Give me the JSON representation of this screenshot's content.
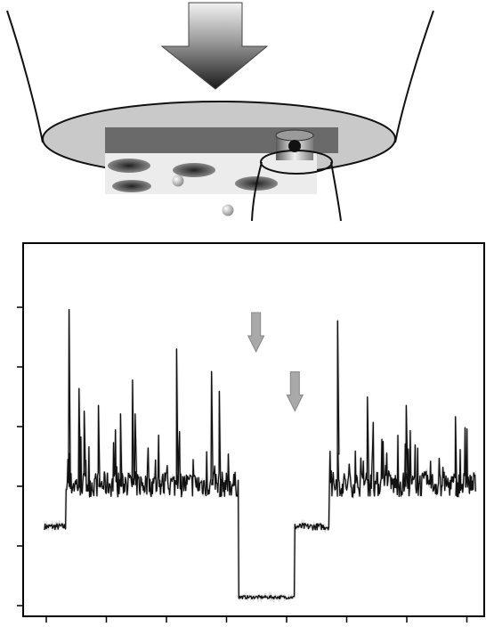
{
  "chart_data": {
    "type": "line",
    "title": "",
    "xlabel": "",
    "ylabel": "",
    "x_ticks": 8,
    "y_ticks": 6,
    "grid": false,
    "legend": "none",
    "trace_color": "#111111",
    "segments": [
      {
        "x0": 0.0,
        "x1": 0.05,
        "level": 0.08,
        "noise": 0.012
      },
      {
        "x0": 0.05,
        "x1": 0.45,
        "level": 0.23,
        "noise": 0.045
      },
      {
        "x0": 0.45,
        "x1": 0.58,
        "level": -0.17,
        "noise": 0.006
      },
      {
        "x0": 0.58,
        "x1": 0.66,
        "level": 0.08,
        "noise": 0.012
      },
      {
        "x0": 0.66,
        "x1": 1.0,
        "level": 0.23,
        "noise": 0.045
      }
    ],
    "spikes": [
      {
        "x": 0.057,
        "y": 0.85
      },
      {
        "x": 0.08,
        "y": 0.57
      },
      {
        "x": 0.092,
        "y": 0.49
      },
      {
        "x": 0.125,
        "y": 0.51
      },
      {
        "x": 0.176,
        "y": 0.48
      },
      {
        "x": 0.204,
        "y": 0.6
      },
      {
        "x": 0.21,
        "y": 0.48
      },
      {
        "x": 0.306,
        "y": 0.71
      },
      {
        "x": 0.387,
        "y": 0.63
      },
      {
        "x": 0.405,
        "y": 0.56
      },
      {
        "x": 0.679,
        "y": 0.81
      },
      {
        "x": 0.748,
        "y": 0.54
      },
      {
        "x": 0.838,
        "y": 0.51
      },
      {
        "x": 0.952,
        "y": 0.47
      }
    ],
    "markers": [
      {
        "name": "arrow-1",
        "x": 0.49,
        "y": 0.7
      },
      {
        "name": "arrow-2",
        "x": 0.58,
        "y": 0.49
      }
    ]
  },
  "diagram": {
    "colors": {
      "basin_fill": "#c9c9c9",
      "block_top": "#6a6a6a",
      "block_front": "#e6e6e6",
      "hole": "#555555",
      "bead": "#bdbdbd",
      "outline": "#111111"
    },
    "parts": [
      "funnel-wall",
      "membrane-basin",
      "pore-block",
      "pipette-tip",
      "pressure-arrow",
      "translocating-bead"
    ]
  }
}
